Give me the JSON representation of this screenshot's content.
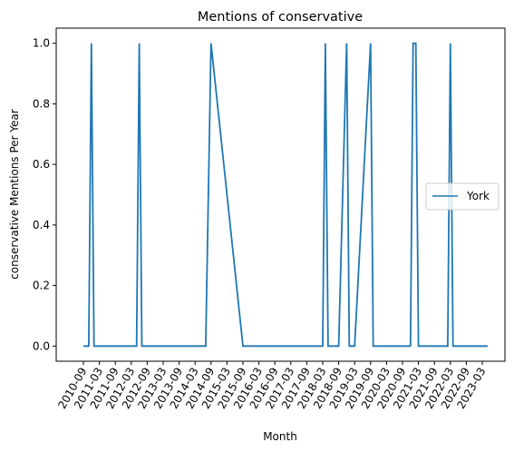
{
  "chart_data": {
    "type": "line",
    "title": "Mentions of conservative",
    "xlabel": "Month",
    "ylabel": "conservative Mentions Per Year",
    "ylim": [
      -0.05,
      1.05
    ],
    "y_ticks": [
      "0.0",
      "0.2",
      "0.4",
      "0.6",
      "0.8",
      "1.0"
    ],
    "y_tick_values": [
      0.0,
      0.2,
      0.4,
      0.6,
      0.8,
      1.0
    ],
    "x_ticks": [
      "2010-09",
      "2011-03",
      "2011-09",
      "2012-03",
      "2012-09",
      "2013-03",
      "2013-09",
      "2014-03",
      "2014-09",
      "2015-03",
      "2015-09",
      "2016-03",
      "2016-09",
      "2017-03",
      "2017-09",
      "2018-03",
      "2018-09",
      "2019-03",
      "2019-09",
      "2020-03",
      "2020-09",
      "2021-03",
      "2021-09",
      "2022-03",
      "2022-09",
      "2023-03"
    ],
    "legend": {
      "placement": "center-right",
      "entries": [
        "York"
      ]
    },
    "grid": false,
    "series": [
      {
        "name": "York",
        "color": "#1f77b4",
        "points": [
          [
            "2010-09",
            0
          ],
          [
            "2010-11",
            0
          ],
          [
            "2010-12",
            1
          ],
          [
            "2011-01",
            0
          ],
          [
            "2011-03",
            0
          ],
          [
            "2011-09",
            0
          ],
          [
            "2012-03",
            0
          ],
          [
            "2012-05",
            0
          ],
          [
            "2012-06",
            1
          ],
          [
            "2012-07",
            0
          ],
          [
            "2012-09",
            0
          ],
          [
            "2013-03",
            0
          ],
          [
            "2013-09",
            0
          ],
          [
            "2014-03",
            0
          ],
          [
            "2014-07",
            0
          ],
          [
            "2014-09",
            1
          ],
          [
            "2015-09",
            0
          ],
          [
            "2016-03",
            0
          ],
          [
            "2016-09",
            0
          ],
          [
            "2017-03",
            0
          ],
          [
            "2017-09",
            0
          ],
          [
            "2018-03",
            0
          ],
          [
            "2018-04",
            1
          ],
          [
            "2018-05",
            0
          ],
          [
            "2018-09",
            0
          ],
          [
            "2018-12",
            1
          ],
          [
            "2019-01",
            0
          ],
          [
            "2019-03",
            0
          ],
          [
            "2019-09",
            1
          ],
          [
            "2019-10",
            0
          ],
          [
            "2020-03",
            0
          ],
          [
            "2020-09",
            0
          ],
          [
            "2020-12",
            0
          ],
          [
            "2021-01",
            1
          ],
          [
            "2021-02",
            1
          ],
          [
            "2021-03",
            0
          ],
          [
            "2021-09",
            0
          ],
          [
            "2022-02",
            0
          ],
          [
            "2022-03",
            1
          ],
          [
            "2022-04",
            0
          ],
          [
            "2022-09",
            0
          ],
          [
            "2023-03",
            0
          ],
          [
            "2023-05",
            0
          ]
        ]
      }
    ]
  }
}
